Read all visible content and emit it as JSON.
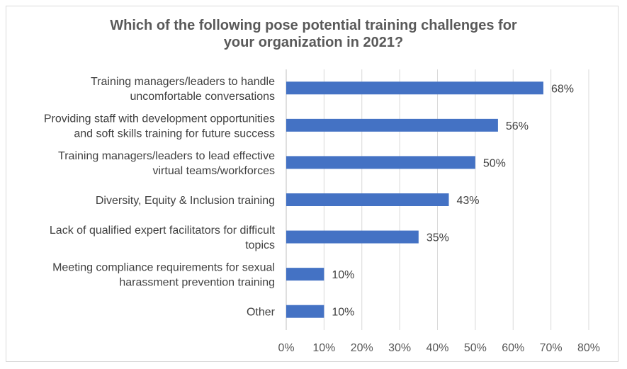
{
  "chart_data": {
    "type": "bar",
    "orientation": "horizontal",
    "title_lines": [
      "Which of the following pose potential training challenges for",
      "your organization in 2021?"
    ],
    "categories": [
      [
        "Training managers/leaders to handle",
        "uncomfortable conversations"
      ],
      [
        "Providing staff with development opportunities",
        "and soft skills training for future success"
      ],
      [
        "Training managers/leaders to lead effective",
        "virtual teams/workforces"
      ],
      [
        "Diversity, Equity & Inclusion training"
      ],
      [
        "Lack of qualified expert facilitators for difficult",
        "topics"
      ],
      [
        "Meeting compliance requirements for sexual",
        "harassment prevention training"
      ],
      [
        "Other"
      ]
    ],
    "values": [
      68,
      56,
      50,
      43,
      35,
      10,
      10
    ],
    "data_labels": [
      "68%",
      "56%",
      "50%",
      "43%",
      "35%",
      "10%",
      "10%"
    ],
    "xlim": [
      0,
      80
    ],
    "xticks": [
      0,
      10,
      20,
      30,
      40,
      50,
      60,
      70,
      80
    ],
    "xtick_labels": [
      "0%",
      "10%",
      "20%",
      "30%",
      "40%",
      "50%",
      "60%",
      "70%",
      "80%"
    ],
    "grid": "vertical",
    "legend": "none",
    "colors": {
      "bar": "#4472c4",
      "grid": "#d9d9d9",
      "title": "#595959",
      "text": "#404040"
    }
  }
}
